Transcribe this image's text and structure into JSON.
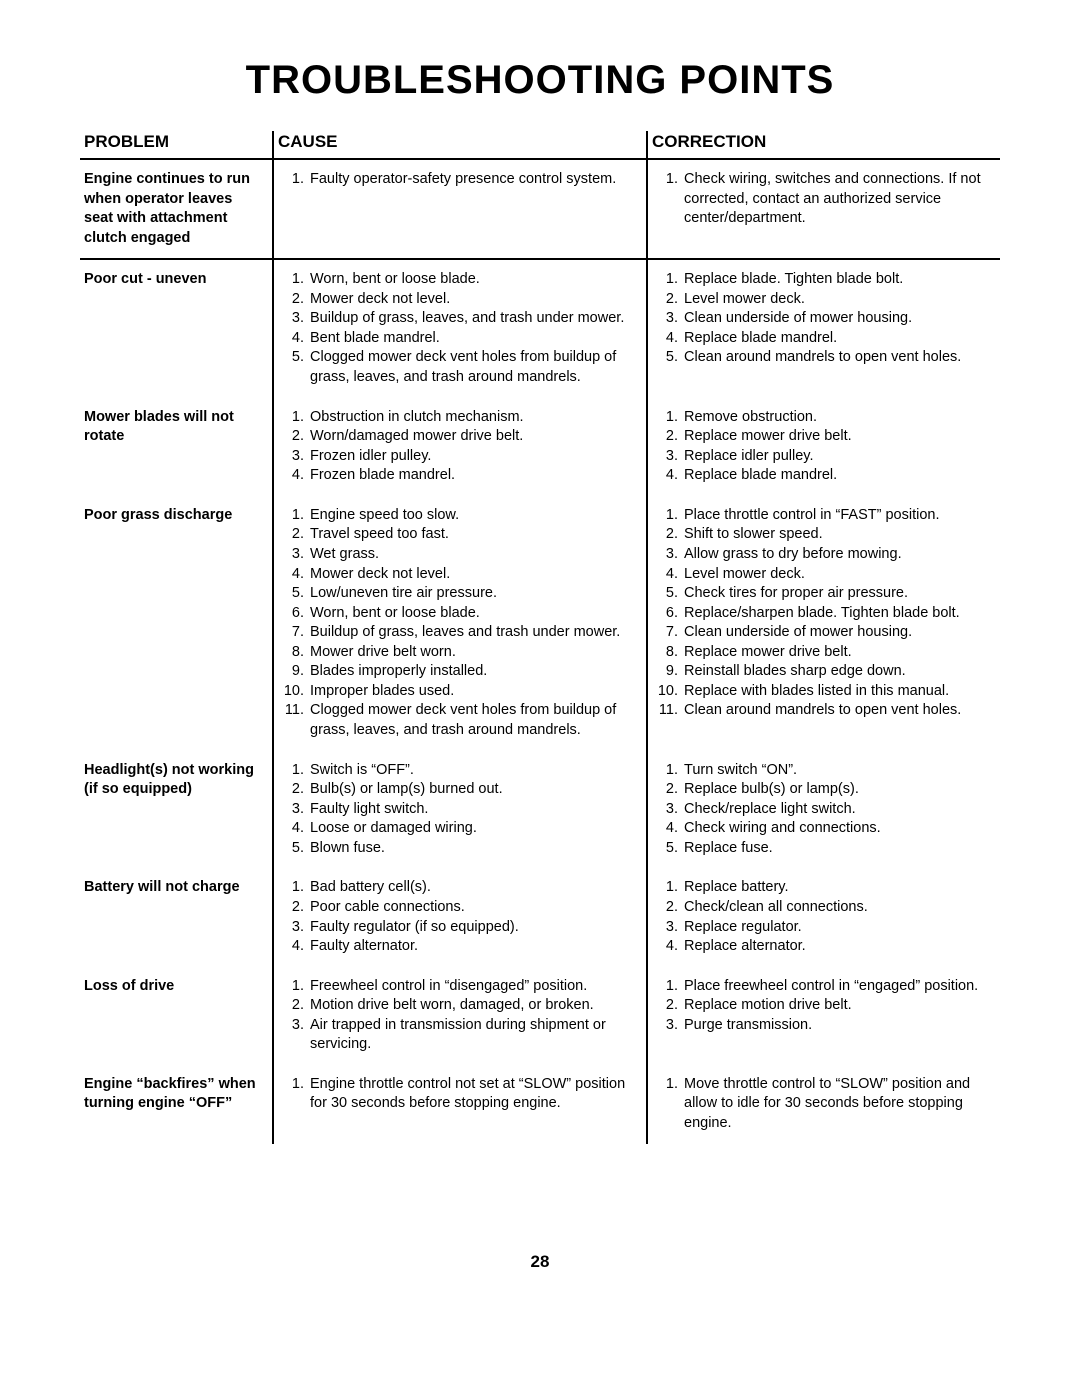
{
  "title": "TROUBLESHOOTING POINTS",
  "pageNumber": "28",
  "headers": {
    "problem": "PROBLEM",
    "cause": "CAUSE",
    "correction": "CORRECTION"
  },
  "rows": [
    {
      "problem": "Engine continues to run when operator leaves seat with attachment clutch engaged",
      "causes": [
        "Faulty operator-safety presence control system."
      ],
      "corrections": [
        "Check wiring, switches  and connections.  If not corrected, contact an authorized service center/department."
      ],
      "sep": true
    },
    {
      "problem": "Poor cut - uneven",
      "causes": [
        "Worn, bent or loose blade.",
        "Mower deck not level.",
        "Buildup of grass, leaves, and trash under mower.",
        "Bent blade mandrel.",
        "Clogged mower deck vent holes from buildup of grass, leaves, and trash around mandrels."
      ],
      "corrections": [
        "Replace blade.  Tighten blade bolt.",
        "Level mower deck.",
        "Clean underside of mower housing.",
        "Replace blade mandrel.",
        "Clean around mandrels to open vent holes."
      ],
      "sep": false
    },
    {
      "problem": "Mower blades will not rotate",
      "causes": [
        "Obstruction in clutch mechanism.",
        "Worn/damaged mower drive belt.",
        "Frozen idler pulley.",
        "Frozen blade mandrel."
      ],
      "corrections": [
        "Remove obstruction.",
        "Replace mower drive belt.",
        "Replace idler pulley.",
        "Replace blade mandrel."
      ],
      "sep": false
    },
    {
      "problem": "Poor grass discharge",
      "causes": [
        "Engine speed too slow.",
        "Travel speed too fast.",
        "Wet grass.",
        "Mower deck not level.",
        "Low/uneven tire air pressure.",
        "Worn, bent or loose blade.",
        "Buildup of grass, leaves and trash under mower.",
        "Mower drive belt worn.",
        "Blades improperly installed.",
        "Improper blades used.",
        "Clogged mower deck vent holes from buildup of grass, leaves, and trash around mandrels."
      ],
      "corrections": [
        "Place throttle control in “FAST” position.",
        "Shift to slower speed.",
        "Allow grass to dry before mowing.",
        "Level mower deck.",
        "Check tires for proper air pressure.",
        "Replace/sharpen blade.  Tighten blade bolt.",
        "Clean underside of mower housing.",
        "Replace mower drive belt.",
        "Reinstall blades sharp edge down.",
        "Replace with blades listed in this manual.",
        "Clean around mandrels to open vent holes."
      ],
      "sep": false
    },
    {
      "problem": "Headlight(s) not working (if so equipped)",
      "causes": [
        "Switch is “OFF”.",
        "Bulb(s) or lamp(s) burned out.",
        "Faulty light switch.",
        "Loose or damaged wiring.",
        "Blown fuse."
      ],
      "corrections": [
        "Turn switch “ON”.",
        "Replace bulb(s) or lamp(s).",
        "Check/replace light switch.",
        "Check wiring and connections.",
        "Replace fuse."
      ],
      "sep": false
    },
    {
      "problem": "Battery will not charge",
      "causes": [
        "Bad battery cell(s).",
        "Poor cable connections.",
        "Faulty regulator (if so equipped).",
        "Faulty alternator."
      ],
      "corrections": [
        "Replace battery.",
        "Check/clean all connections.",
        "Replace regulator.",
        "Replace alternator."
      ],
      "sep": false
    },
    {
      "problem": "Loss of drive",
      "causes": [
        "Freewheel control in “disengaged” position.",
        "Motion drive belt worn, damaged, or broken.",
        "Air trapped in transmission during shipment or servicing."
      ],
      "corrections": [
        "Place freewheel control in “engaged” position.",
        "Replace motion drive belt.",
        "Purge transmission."
      ],
      "sep": false
    },
    {
      "problem": "Engine “backfires” when turning engine “OFF”",
      "causes": [
        "Engine throttle control not set at “SLOW” position for 30 seconds before stopping engine."
      ],
      "corrections": [
        "Move throttle control to “SLOW” position and allow to idle for 30 seconds before stopping engine."
      ],
      "sep": false
    }
  ]
}
